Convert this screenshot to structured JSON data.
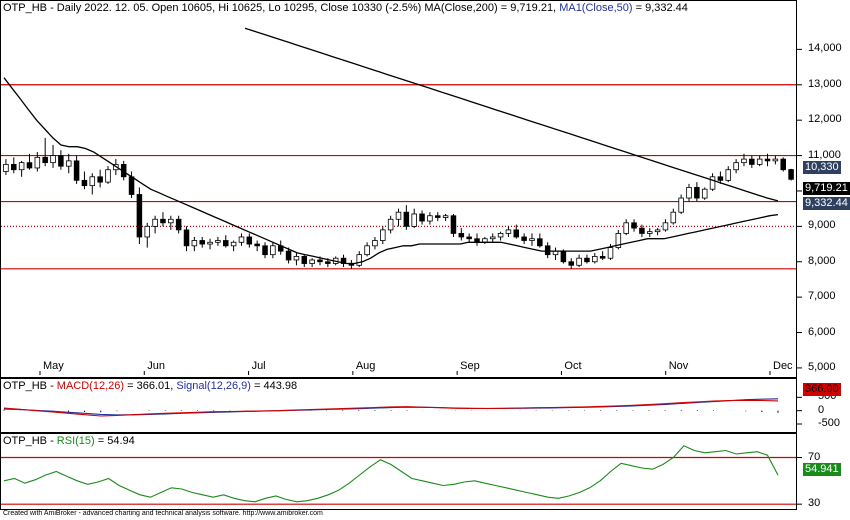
{
  "price_header": {
    "symbol": "OTP_HB",
    "info": "- Daily 2022. 12. 05. Open 10605, Hi 10625, Lo 10295, Close 10330 (-2.5%)",
    "ma_label": "MA(Close,200) = 9,719.21,",
    "ma1_label": "MA1(Close,50)",
    "ma1_value": "= 9,332.44"
  },
  "macd_header": {
    "symbol": "OTP_HB -",
    "macd_label": "MACD(12,26)",
    "macd_value": "= 366.01,",
    "signal_label": "Signal(12,26,9)",
    "signal_value": "= 443.98"
  },
  "rsi_header": {
    "symbol": "OTP_HB -",
    "rsi_label": "RSI(15)",
    "rsi_value": "= 54.94"
  },
  "footer": "Created with AmiBroker - advanced charting and technical analysis software. http://www.amibroker.com",
  "badges": {
    "close": "10,330",
    "ma200": "9,719.21",
    "ma50": "9,332.44",
    "macd": "366.00",
    "rsi": "54.941"
  },
  "colors": {
    "bull": "#ffffff",
    "bear": "#000000",
    "hline": "#d00000",
    "ma": "#000000",
    "macd": "#d00000",
    "signal": "#2030a0",
    "rsi": "#1a8a1a",
    "close_badge": "#2f3f5f",
    "macd_badge": "#d00000",
    "rsi_badge": "#1a8a1a"
  },
  "chart_data": [
    {
      "type": "candlestick",
      "title": "OTP_HB - Daily 2022. 12. 05. Open 10605, Hi 10625, Lo 10295, Close 10330 (-2.5%)",
      "y_ticks": [
        "5,000",
        "6,000",
        "7,000",
        "8,000",
        "9,000",
        "10,000",
        "11,000",
        "12,000",
        "13,000",
        "14,000"
      ],
      "ylim": [
        4800,
        15000
      ],
      "x_labels": [
        "May",
        "Jun",
        "Jul",
        "Aug",
        "Sep",
        "Oct",
        "Nov",
        "Dec"
      ],
      "hlines": [
        13000,
        11000,
        9700,
        7800
      ],
      "dotted_hline": 9000,
      "candles": [
        {
          "o": 10550,
          "h": 10900,
          "l": 10450,
          "c": 10750
        },
        {
          "o": 10750,
          "h": 10950,
          "l": 10500,
          "c": 10600
        },
        {
          "o": 10600,
          "h": 10850,
          "l": 10400,
          "c": 10800
        },
        {
          "o": 10800,
          "h": 11050,
          "l": 10600,
          "c": 10650
        },
        {
          "o": 10650,
          "h": 11100,
          "l": 10550,
          "c": 10950
        },
        {
          "o": 10950,
          "h": 11500,
          "l": 10700,
          "c": 10800
        },
        {
          "o": 10800,
          "h": 11300,
          "l": 10650,
          "c": 11000
        },
        {
          "o": 11000,
          "h": 11150,
          "l": 10600,
          "c": 10700
        },
        {
          "o": 10700,
          "h": 11050,
          "l": 10500,
          "c": 10850
        },
        {
          "o": 10850,
          "h": 11000,
          "l": 10200,
          "c": 10300
        },
        {
          "o": 10300,
          "h": 10550,
          "l": 10050,
          "c": 10150
        },
        {
          "o": 10150,
          "h": 10500,
          "l": 9900,
          "c": 10400
        },
        {
          "o": 10400,
          "h": 10600,
          "l": 10100,
          "c": 10250
        },
        {
          "o": 10250,
          "h": 10700,
          "l": 10200,
          "c": 10600
        },
        {
          "o": 10600,
          "h": 10900,
          "l": 10450,
          "c": 10750
        },
        {
          "o": 10750,
          "h": 10850,
          "l": 10300,
          "c": 10400
        },
        {
          "o": 10400,
          "h": 10550,
          "l": 9800,
          "c": 9900
        },
        {
          "o": 9900,
          "h": 10100,
          "l": 8500,
          "c": 8700
        },
        {
          "o": 8700,
          "h": 9100,
          "l": 8400,
          "c": 9000
        },
        {
          "o": 9000,
          "h": 9300,
          "l": 8800,
          "c": 9200
        },
        {
          "o": 9200,
          "h": 9400,
          "l": 9000,
          "c": 9100
        },
        {
          "o": 9100,
          "h": 9300,
          "l": 8900,
          "c": 9200
        },
        {
          "o": 9200,
          "h": 9300,
          "l": 8800,
          "c": 8900
        },
        {
          "o": 8900,
          "h": 9000,
          "l": 8300,
          "c": 8450
        },
        {
          "o": 8450,
          "h": 8700,
          "l": 8300,
          "c": 8600
        },
        {
          "o": 8600,
          "h": 8700,
          "l": 8400,
          "c": 8500
        },
        {
          "o": 8500,
          "h": 8650,
          "l": 8350,
          "c": 8550
        },
        {
          "o": 8550,
          "h": 8700,
          "l": 8450,
          "c": 8600
        },
        {
          "o": 8600,
          "h": 8750,
          "l": 8400,
          "c": 8450
        },
        {
          "o": 8450,
          "h": 8600,
          "l": 8300,
          "c": 8550
        },
        {
          "o": 8550,
          "h": 8800,
          "l": 8450,
          "c": 8700
        },
        {
          "o": 8700,
          "h": 8800,
          "l": 8400,
          "c": 8500
        },
        {
          "o": 8500,
          "h": 8600,
          "l": 8300,
          "c": 8450
        },
        {
          "o": 8450,
          "h": 8550,
          "l": 8100,
          "c": 8200
        },
        {
          "o": 8200,
          "h": 8550,
          "l": 8100,
          "c": 8450
        },
        {
          "o": 8450,
          "h": 8600,
          "l": 8200,
          "c": 8300
        },
        {
          "o": 8300,
          "h": 8400,
          "l": 7950,
          "c": 8050
        },
        {
          "o": 8050,
          "h": 8250,
          "l": 7900,
          "c": 8150
        },
        {
          "o": 8150,
          "h": 8200,
          "l": 7850,
          "c": 7950
        },
        {
          "o": 7950,
          "h": 8100,
          "l": 7850,
          "c": 8050
        },
        {
          "o": 8050,
          "h": 8150,
          "l": 7900,
          "c": 8000
        },
        {
          "o": 8000,
          "h": 8100,
          "l": 7850,
          "c": 7950
        },
        {
          "o": 7950,
          "h": 8150,
          "l": 7900,
          "c": 8100
        },
        {
          "o": 8100,
          "h": 8200,
          "l": 7850,
          "c": 7950
        },
        {
          "o": 7950,
          "h": 8050,
          "l": 7800,
          "c": 7900
        },
        {
          "o": 7900,
          "h": 8300,
          "l": 7850,
          "c": 8200
        },
        {
          "o": 8200,
          "h": 8550,
          "l": 8150,
          "c": 8450
        },
        {
          "o": 8450,
          "h": 8700,
          "l": 8350,
          "c": 8600
        },
        {
          "o": 8600,
          "h": 9000,
          "l": 8500,
          "c": 8900
        },
        {
          "o": 8900,
          "h": 9300,
          "l": 8800,
          "c": 9200
        },
        {
          "o": 9200,
          "h": 9500,
          "l": 9000,
          "c": 9400
        },
        {
          "o": 9400,
          "h": 9600,
          "l": 8900,
          "c": 9000
        },
        {
          "o": 9000,
          "h": 9500,
          "l": 8950,
          "c": 9350
        },
        {
          "o": 9350,
          "h": 9450,
          "l": 9050,
          "c": 9150
        },
        {
          "o": 9150,
          "h": 9400,
          "l": 9050,
          "c": 9300
        },
        {
          "o": 9300,
          "h": 9400,
          "l": 9150,
          "c": 9250
        },
        {
          "o": 9250,
          "h": 9350,
          "l": 9150,
          "c": 9300
        },
        {
          "o": 9300,
          "h": 9350,
          "l": 8700,
          "c": 8800
        },
        {
          "o": 8800,
          "h": 8950,
          "l": 8600,
          "c": 8700
        },
        {
          "o": 8700,
          "h": 8800,
          "l": 8550,
          "c": 8650
        },
        {
          "o": 8650,
          "h": 8800,
          "l": 8450,
          "c": 8550
        },
        {
          "o": 8550,
          "h": 8700,
          "l": 8500,
          "c": 8650
        },
        {
          "o": 8650,
          "h": 8800,
          "l": 8550,
          "c": 8700
        },
        {
          "o": 8700,
          "h": 8850,
          "l": 8600,
          "c": 8800
        },
        {
          "o": 8800,
          "h": 9000,
          "l": 8700,
          "c": 8900
        },
        {
          "o": 8900,
          "h": 9050,
          "l": 8650,
          "c": 8700
        },
        {
          "o": 8700,
          "h": 8800,
          "l": 8500,
          "c": 8600
        },
        {
          "o": 8600,
          "h": 8800,
          "l": 8450,
          "c": 8650
        },
        {
          "o": 8650,
          "h": 8800,
          "l": 8400,
          "c": 8450
        },
        {
          "o": 8450,
          "h": 8550,
          "l": 8100,
          "c": 8200
        },
        {
          "o": 8200,
          "h": 8400,
          "l": 8050,
          "c": 8300
        },
        {
          "o": 8300,
          "h": 8350,
          "l": 7950,
          "c": 8000
        },
        {
          "o": 8000,
          "h": 8100,
          "l": 7800,
          "c": 7900
        },
        {
          "o": 7900,
          "h": 8200,
          "l": 7850,
          "c": 8100
        },
        {
          "o": 8100,
          "h": 8200,
          "l": 7950,
          "c": 8000
        },
        {
          "o": 8000,
          "h": 8250,
          "l": 7950,
          "c": 8150
        },
        {
          "o": 8150,
          "h": 8300,
          "l": 8050,
          "c": 8100
        },
        {
          "o": 8100,
          "h": 8500,
          "l": 8050,
          "c": 8400
        },
        {
          "o": 8400,
          "h": 8900,
          "l": 8350,
          "c": 8800
        },
        {
          "o": 8800,
          "h": 9200,
          "l": 8750,
          "c": 9100
        },
        {
          "o": 9100,
          "h": 9200,
          "l": 8850,
          "c": 8950
        },
        {
          "o": 8950,
          "h": 9050,
          "l": 8700,
          "c": 8800
        },
        {
          "o": 8800,
          "h": 8950,
          "l": 8700,
          "c": 8850
        },
        {
          "o": 8850,
          "h": 8950,
          "l": 8750,
          "c": 8900
        },
        {
          "o": 8900,
          "h": 9200,
          "l": 8850,
          "c": 9100
        },
        {
          "o": 9100,
          "h": 9500,
          "l": 9050,
          "c": 9400
        },
        {
          "o": 9400,
          "h": 9900,
          "l": 9350,
          "c": 9800
        },
        {
          "o": 9800,
          "h": 10200,
          "l": 9700,
          "c": 10100
        },
        {
          "o": 10100,
          "h": 10250,
          "l": 9700,
          "c": 9800
        },
        {
          "o": 9800,
          "h": 10100,
          "l": 9750,
          "c": 10050
        },
        {
          "o": 10050,
          "h": 10500,
          "l": 10000,
          "c": 10400
        },
        {
          "o": 10400,
          "h": 10550,
          "l": 10200,
          "c": 10300
        },
        {
          "o": 10300,
          "h": 10700,
          "l": 10250,
          "c": 10600
        },
        {
          "o": 10600,
          "h": 10900,
          "l": 10500,
          "c": 10800
        },
        {
          "o": 10800,
          "h": 11050,
          "l": 10700,
          "c": 10900
        },
        {
          "o": 10900,
          "h": 11000,
          "l": 10650,
          "c": 10750
        },
        {
          "o": 10750,
          "h": 11000,
          "l": 10700,
          "c": 10900
        },
        {
          "o": 10900,
          "h": 11050,
          "l": 10700,
          "c": 10850
        },
        {
          "o": 10850,
          "h": 11000,
          "l": 10750,
          "c": 10900
        },
        {
          "o": 10900,
          "h": 10950,
          "l": 10550,
          "c": 10600
        },
        {
          "o": 10605,
          "h": 10625,
          "l": 10295,
          "c": 10330
        }
      ],
      "ma200": [
        14600,
        14500,
        14400,
        14300,
        14200,
        14100,
        14000,
        13900,
        13800,
        13700,
        13600,
        13500,
        13400,
        13300,
        13200,
        13100,
        13000,
        12900,
        12800,
        12700,
        12600,
        12500,
        12400,
        12300,
        12200,
        12100,
        12000,
        11900,
        11800,
        11700,
        11600,
        11500,
        11400,
        11300,
        11200,
        11100,
        11000,
        10900,
        10800,
        10700,
        10600,
        10500,
        10400,
        10300,
        10200,
        10100,
        10000,
        9900,
        9800,
        9719
      ],
      "ma50": [
        13200,
        12900,
        12600,
        12300,
        12000,
        11750,
        11500,
        11300,
        11250,
        11250,
        11200,
        11100,
        10950,
        10800,
        10650,
        10500,
        10350,
        10200,
        10050,
        9950,
        9850,
        9750,
        9650,
        9550,
        9450,
        9350,
        9250,
        9150,
        9050,
        8950,
        8850,
        8750,
        8650,
        8550,
        8450,
        8350,
        8250,
        8200,
        8150,
        8100,
        8050,
        8000,
        7950,
        7950,
        8000,
        8100,
        8250,
        8350,
        8400,
        8450,
        8450,
        8500,
        8500,
        8500,
        8500,
        8500,
        8500,
        8550,
        8550,
        8550,
        8550,
        8550,
        8500,
        8450,
        8400,
        8350,
        8300,
        8300,
        8300,
        8300,
        8300,
        8300,
        8300,
        8350,
        8400,
        8450,
        8500,
        8550,
        8600,
        8650,
        8650,
        8650,
        8700,
        8750,
        8800,
        8850,
        8900,
        8950,
        9000,
        9050,
        9100,
        9150,
        9200,
        9250,
        9300,
        9332
      ]
    },
    {
      "type": "line",
      "title": "OTP_HB - MACD(12,26) = 366.01, Signal(12,26,9) = 443.98",
      "y_ticks": [
        "-500",
        "0",
        "500"
      ],
      "ylim": [
        -800,
        700
      ],
      "series": [
        {
          "name": "MACD(12,26)",
          "values": [
            100,
            50,
            0,
            -50,
            -100,
            -150,
            -200,
            -180,
            -150,
            -120,
            -100,
            -80,
            -60,
            -40,
            -30,
            -20,
            -10,
            0,
            20,
            40,
            60,
            80,
            100,
            120,
            140,
            150,
            130,
            110,
            90,
            80,
            80,
            90,
            100,
            110,
            120,
            130,
            140,
            160,
            180,
            200,
            230,
            260,
            300,
            330,
            360,
            380,
            390,
            380,
            366
          ]
        },
        {
          "name": "Signal(12,26,9)",
          "values": [
            60,
            40,
            10,
            -20,
            -60,
            -100,
            -140,
            -160,
            -155,
            -140,
            -120,
            -100,
            -80,
            -60,
            -45,
            -30,
            -15,
            0,
            15,
            30,
            45,
            60,
            75,
            95,
            115,
            130,
            125,
            115,
            100,
            90,
            85,
            85,
            90,
            95,
            105,
            115,
            125,
            140,
            160,
            180,
            205,
            235,
            270,
            305,
            340,
            375,
            410,
            430,
            444
          ]
        }
      ],
      "histogram": [
        40,
        10,
        -10,
        -30,
        -40,
        -50,
        -60,
        -20,
        5,
        20,
        20,
        20,
        20,
        20,
        15,
        10,
        5,
        0,
        5,
        10,
        15,
        20,
        25,
        25,
        25,
        20,
        5,
        -5,
        -10,
        -10,
        -5,
        5,
        10,
        15,
        15,
        15,
        15,
        20,
        20,
        20,
        25,
        25,
        30,
        25,
        20,
        5,
        -20,
        -50,
        -78
      ]
    },
    {
      "type": "line",
      "title": "OTP_HB - RSI(15) = 54.94",
      "y_ticks": [
        "70",
        "30"
      ],
      "ylim": [
        25,
        85
      ],
      "hlines": [
        70,
        30
      ],
      "series": [
        {
          "name": "RSI(15)",
          "values": [
            50,
            52,
            48,
            51,
            55,
            58,
            54,
            50,
            47,
            49,
            52,
            46,
            42,
            38,
            36,
            40,
            44,
            43,
            40,
            38,
            36,
            38,
            35,
            33,
            32,
            35,
            37,
            34,
            32,
            33,
            35,
            38,
            42,
            48,
            55,
            62,
            68,
            64,
            58,
            52,
            50,
            48,
            46,
            47,
            49,
            50,
            48,
            46,
            44,
            42,
            40,
            38,
            36,
            35,
            37,
            40,
            44,
            50,
            58,
            65,
            63,
            61,
            60,
            64,
            70,
            80,
            76,
            74,
            75,
            76,
            73,
            74,
            75,
            72,
            54.94
          ]
        }
      ]
    }
  ]
}
